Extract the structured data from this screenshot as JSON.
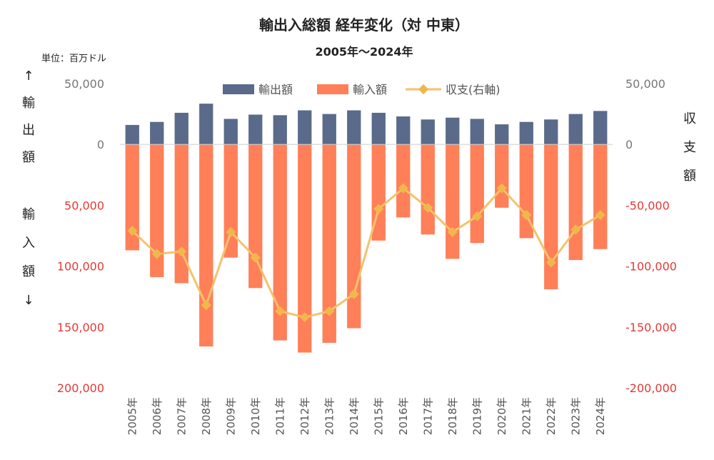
{
  "chart_data": {
    "type": "bar",
    "title": "輸出入総額 経年変化（対 中東）",
    "subtitle": "2005年～2024年",
    "unit_label": "単位：百万ドル",
    "left_axis_label_top": [
      "↑",
      "輸",
      "出",
      "額"
    ],
    "left_axis_label_bottom": [
      "輸",
      "入",
      "額",
      "↓"
    ],
    "right_axis_label": [
      "収",
      "支",
      "額"
    ],
    "categories": [
      "2005年",
      "2006年",
      "2007年",
      "2008年",
      "2009年",
      "2010年",
      "2011年",
      "2012年",
      "2013年",
      "2014年",
      "2015年",
      "2016年",
      "2017年",
      "2018年",
      "2019年",
      "2020年",
      "2021年",
      "2022年",
      "2023年",
      "2024年"
    ],
    "series": [
      {
        "name": "輸出額",
        "type": "bar",
        "color": "#5a6a8a",
        "values": [
          16000,
          18500,
          26000,
          33500,
          21000,
          24500,
          24000,
          28000,
          25000,
          28000,
          26000,
          23000,
          20500,
          22000,
          21000,
          16500,
          18500,
          20500,
          25000,
          27500
        ]
      },
      {
        "name": "輸入額",
        "type": "bar",
        "color": "#ff7f59",
        "values": [
          -87000,
          -109000,
          -114000,
          -166000,
          -93000,
          -118000,
          -161000,
          -171000,
          -163000,
          -151000,
          -79000,
          -60000,
          -74000,
          -94000,
          -81000,
          -52000,
          -77000,
          -119000,
          -95000,
          -86000
        ]
      },
      {
        "name": "収支(右軸)",
        "type": "line",
        "axis": "right",
        "color": "#f5c26b",
        "marker_color": "#f0b84a",
        "values": [
          -71000,
          -90000,
          -88000,
          -132000,
          -72000,
          -93000,
          -137000,
          -142000,
          -137000,
          -123000,
          -53000,
          -36000,
          -52000,
          -72000,
          -59000,
          -36000,
          -58000,
          -97000,
          -70000,
          -58000
        ]
      }
    ],
    "left_axis": {
      "min": -200000,
      "max": 50000,
      "ticks": [
        50000,
        0,
        -50000,
        -100000,
        -150000,
        -200000
      ],
      "tick_labels": [
        "50,000",
        "0",
        "50,000",
        "100,000",
        "150,000",
        "200,000"
      ]
    },
    "right_axis": {
      "min": -200000,
      "max": 50000,
      "ticks": [
        50000,
        0,
        -50000,
        -100000,
        -150000,
        -200000
      ],
      "tick_labels": [
        "50,000",
        "0",
        "-50,000",
        "-100,000",
        "-150,000",
        "-200,000"
      ]
    },
    "legend_position": "top",
    "grid": false,
    "colors": {
      "export": "#5a6a8a",
      "import": "#ff7f59",
      "balance_line": "#f5c26b",
      "balance_marker": "#f0b84a",
      "negative_tick": "#e53935",
      "positive_tick": "#777777"
    }
  }
}
